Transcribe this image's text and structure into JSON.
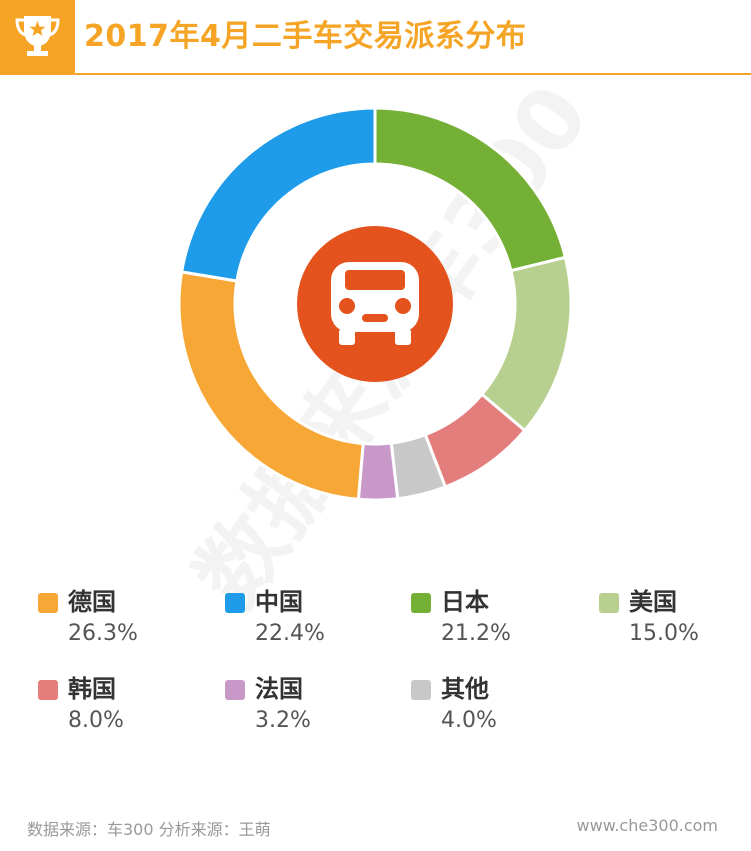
{
  "header": {
    "title": "2017年4月二手车交易派系分布"
  },
  "watermark": "数据来源车300",
  "colors": {
    "accent": "#f6a425",
    "center_circle": "#e4531d"
  },
  "icons": {
    "header": "trophy-icon",
    "center": "car-icon"
  },
  "chart_data": {
    "type": "pie",
    "donut": true,
    "title": "2017年4月二手车交易派系分布",
    "legend_position": "bottom",
    "series": [
      {
        "name": "德国",
        "value": 26.3,
        "label": "26.3%",
        "color": "#f6a735"
      },
      {
        "name": "中国",
        "value": 22.4,
        "label": "22.4%",
        "color": "#1e9be9"
      },
      {
        "name": "日本",
        "value": 21.2,
        "label": "21.2%",
        "color": "#75b036"
      },
      {
        "name": "美国",
        "value": 15.0,
        "label": "15.0%",
        "color": "#b7cf8f"
      },
      {
        "name": "韩国",
        "value": 8.0,
        "label": "8.0%",
        "color": "#e47e7d"
      },
      {
        "name": "法国",
        "value": 3.2,
        "label": "3.2%",
        "color": "#c898c8"
      },
      {
        "name": "其他",
        "value": 4.0,
        "label": "4.0%",
        "color": "#c8c8c8"
      }
    ]
  },
  "footer": {
    "source": "数据来源：车300 分析来源：王萌",
    "website": "www.che300.com"
  }
}
